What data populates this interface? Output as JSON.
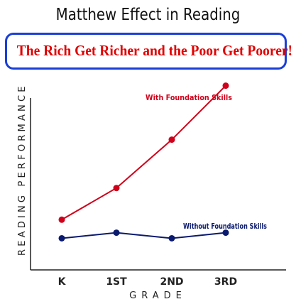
{
  "title": "Matthew Effect in Reading",
  "banner": "The Rich Get Richer and the Poor Get Poorer!",
  "chart_data": {
    "type": "line",
    "categories": [
      "K",
      "1ST",
      "2ND",
      "3RD"
    ],
    "xlabel": "GRADE",
    "ylabel": "READING PERFORMANCE",
    "ylim": [
      0,
      10
    ],
    "grid": false,
    "series": [
      {
        "name": "With Foundation Skills",
        "values": [
          2.7,
          4.4,
          7.0,
          9.9
        ],
        "color": "#d0001a"
      },
      {
        "name": "Without  Foundation Skills",
        "values": [
          1.7,
          2.0,
          1.7,
          2.0
        ],
        "color": "#0a1a6e"
      }
    ]
  }
}
